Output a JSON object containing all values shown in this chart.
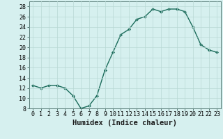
{
  "x": [
    0,
    1,
    2,
    3,
    4,
    5,
    6,
    7,
    8,
    9,
    10,
    11,
    12,
    13,
    14,
    15,
    16,
    17,
    18,
    19,
    20,
    21,
    22,
    23
  ],
  "y": [
    12.5,
    12.0,
    12.5,
    12.5,
    12.0,
    10.5,
    8.0,
    8.5,
    10.5,
    15.5,
    19.0,
    22.5,
    23.5,
    25.5,
    26.0,
    27.5,
    27.0,
    27.5,
    27.5,
    27.0,
    24.0,
    20.5,
    19.5,
    19.0
  ],
  "xlabel": "Humidex (Indice chaleur)",
  "ylim": [
    8,
    29
  ],
  "xlim": [
    -0.5,
    23.5
  ],
  "yticks": [
    8,
    10,
    12,
    14,
    16,
    18,
    20,
    22,
    24,
    26,
    28
  ],
  "xticks": [
    0,
    1,
    2,
    3,
    4,
    5,
    6,
    7,
    8,
    9,
    10,
    11,
    12,
    13,
    14,
    15,
    16,
    17,
    18,
    19,
    20,
    21,
    22,
    23
  ],
  "xtick_labels": [
    "0",
    "1",
    "2",
    "3",
    "4",
    "5",
    "6",
    "7",
    "8",
    "9",
    "10",
    "11",
    "12",
    "13",
    "14",
    "15",
    "16",
    "17",
    "18",
    "19",
    "20",
    "21",
    "22",
    "23"
  ],
  "line_color": "#1a6b5a",
  "marker": "D",
  "marker_size": 2.0,
  "bg_color": "#d6f0ef",
  "grid_color": "#b8d8d4",
  "spine_color": "#557a75",
  "xlabel_fontsize": 7.5,
  "tick_fontsize": 6.0
}
